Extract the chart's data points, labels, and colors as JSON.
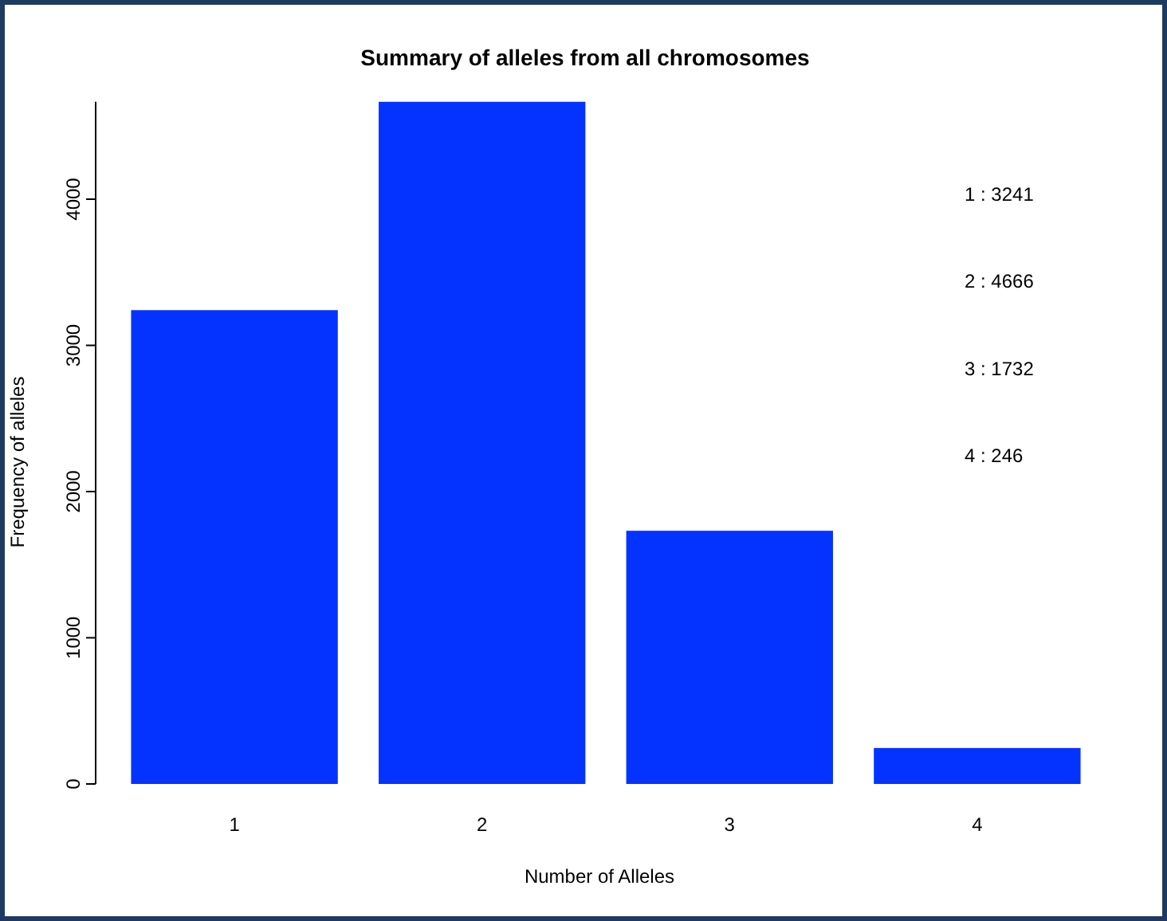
{
  "chart_data": {
    "type": "bar",
    "title": "Summary of alleles from all chromosomes",
    "xlabel": "Number of Alleles",
    "ylabel": "Frequency of alleles",
    "categories": [
      "1",
      "2",
      "3",
      "4"
    ],
    "values": [
      3241,
      4666,
      1732,
      246
    ],
    "color": "#0433ff",
    "ylim": [
      0,
      4666
    ],
    "yticks": [
      0,
      1000,
      2000,
      3000,
      4000
    ],
    "grid": false,
    "annotations": [
      "1 : 3241",
      "2 : 4666",
      "3 : 1732",
      "4 : 246"
    ]
  }
}
